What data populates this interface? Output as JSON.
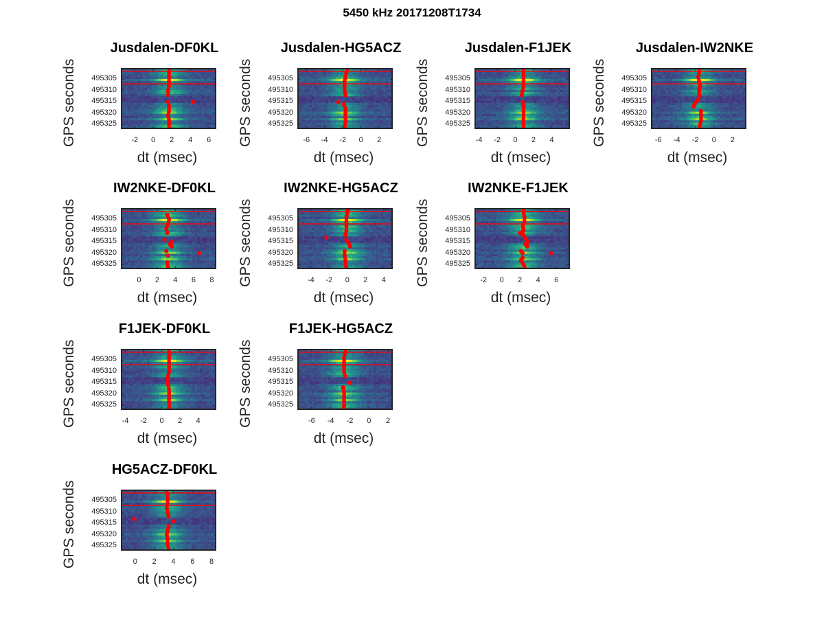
{
  "figure": {
    "title": "5450 kHz 20171208T1734",
    "background": "#ffffff"
  },
  "colors": {
    "marker": "#ff0000",
    "axis_frame": "#262626",
    "colormap": "viridis"
  },
  "chart_data": [
    {
      "type": "heatmap",
      "title": "Jusdalen-DF0KL",
      "xlabel": "dt (msec)",
      "ylabel": "GPS seconds",
      "xticks": [
        -2,
        0,
        2,
        4,
        6
      ],
      "xlim": [
        -3.5,
        6.8
      ],
      "yticks": [
        495305,
        495310,
        495315,
        495320,
        495325
      ],
      "ylim": [
        495300,
        495327
      ],
      "peak_dt": 1.7,
      "hlines": [
        495301.5,
        495307
      ],
      "markers": [
        [
          1.7,
          495300
        ],
        [
          1.7,
          495302
        ],
        [
          1.7,
          495304
        ],
        [
          1.7,
          495306
        ],
        [
          1.7,
          495308
        ],
        [
          1.6,
          495310
        ],
        [
          1.6,
          495312
        ],
        [
          4.3,
          495315
        ],
        [
          1.6,
          495315
        ],
        [
          1.7,
          495317
        ],
        [
          1.7,
          495319
        ],
        [
          1.6,
          495321
        ],
        [
          1.7,
          495323
        ],
        [
          1.7,
          495325
        ],
        [
          1.7,
          495327
        ]
      ],
      "pos": {
        "col": 0,
        "row": 0
      }
    },
    {
      "type": "heatmap",
      "title": "Jusdalen-HG5ACZ",
      "xlabel": "dt (msec)",
      "ylabel": "GPS seconds",
      "xticks": [
        -6,
        -4,
        -2,
        0,
        2
      ],
      "xlim": [
        -7,
        3.5
      ],
      "yticks": [
        495305,
        495310,
        495315,
        495320,
        495325
      ],
      "ylim": [
        495300,
        495327
      ],
      "peak_dt": -1.8,
      "hlines": [
        495301.5,
        495307
      ],
      "markers": [
        [
          -1.5,
          495300
        ],
        [
          -1.6,
          495302
        ],
        [
          -1.7,
          495304
        ],
        [
          -1.8,
          495306
        ],
        [
          -1.8,
          495308
        ],
        [
          -1.8,
          495310
        ],
        [
          -1.7,
          495312
        ],
        [
          -2.5,
          495315
        ],
        [
          -1.9,
          495316
        ],
        [
          -1.7,
          495318
        ],
        [
          -1.7,
          495320
        ],
        [
          -1.7,
          495322
        ],
        [
          -1.7,
          495324
        ],
        [
          -1.8,
          495326
        ],
        [
          -1.8,
          495327
        ]
      ],
      "pos": {
        "col": 1,
        "row": 0
      }
    },
    {
      "type": "heatmap",
      "title": "Jusdalen-F1JEK",
      "xlabel": "dt (msec)",
      "ylabel": "GPS seconds",
      "xticks": [
        -4,
        -2,
        0,
        2,
        4
      ],
      "xlim": [
        -4.5,
        6
      ],
      "yticks": [
        495305,
        495310,
        495315,
        495320,
        495325
      ],
      "ylim": [
        495300,
        495327
      ],
      "peak_dt": 0.9,
      "hlines": [
        495301.5,
        495307
      ],
      "markers": [
        [
          0.9,
          495300
        ],
        [
          0.9,
          495302
        ],
        [
          0.9,
          495304
        ],
        [
          0.9,
          495306
        ],
        [
          0.9,
          495308
        ],
        [
          0.8,
          495310
        ],
        [
          0.7,
          495312
        ],
        [
          0.8,
          495315
        ],
        [
          0.9,
          495317
        ],
        [
          0.9,
          495319
        ],
        [
          0.9,
          495321
        ],
        [
          0.9,
          495323
        ],
        [
          0.9,
          495325
        ],
        [
          0.9,
          495327
        ]
      ],
      "pos": {
        "col": 2,
        "row": 0
      }
    },
    {
      "type": "heatmap",
      "title": "Jusdalen-IW2NKE",
      "xlabel": "dt (msec)",
      "ylabel": "GPS seconds",
      "xticks": [
        -6,
        -4,
        -2,
        0,
        2
      ],
      "xlim": [
        -6.8,
        3.5
      ],
      "yticks": [
        495305,
        495310,
        495315,
        495320,
        495325
      ],
      "ylim": [
        495300,
        495327
      ],
      "peak_dt": -1.6,
      "hlines": [
        495301.5,
        495307
      ],
      "markers": [
        [
          -1.6,
          495300
        ],
        [
          -1.6,
          495302
        ],
        [
          -1.7,
          495304
        ],
        [
          -1.6,
          495306
        ],
        [
          -1.5,
          495308
        ],
        [
          -1.6,
          495310
        ],
        [
          -1.6,
          495312
        ],
        [
          -1.7,
          495314
        ],
        [
          -2.1,
          495316
        ],
        [
          -2.2,
          495317
        ],
        [
          -1.4,
          495319
        ],
        [
          -1.4,
          495321
        ],
        [
          -1.4,
          495323
        ],
        [
          -1.5,
          495325
        ],
        [
          -1.6,
          495327
        ]
      ],
      "pos": {
        "col": 3,
        "row": 0
      }
    },
    {
      "type": "heatmap",
      "title": "IW2NKE-DF0KL",
      "xlabel": "dt (msec)",
      "ylabel": "GPS seconds",
      "xticks": [
        0,
        2,
        4,
        6,
        8
      ],
      "xlim": [
        -2,
        8.5
      ],
      "yticks": [
        495305,
        495310,
        495315,
        495320,
        495325
      ],
      "ylim": [
        495300,
        495327
      ],
      "peak_dt": 3.2,
      "hlines": [
        495301.5,
        495307
      ],
      "markers": [
        [
          3.1,
          495299
        ],
        [
          8.0,
          495300
        ],
        [
          3.1,
          495303
        ],
        [
          3.3,
          495305
        ],
        [
          3.2,
          495307
        ],
        [
          3.0,
          495309
        ],
        [
          3.1,
          495311
        ],
        [
          2.8,
          495314
        ],
        [
          3.6,
          495315
        ],
        [
          3.4,
          495316
        ],
        [
          3.6,
          495317
        ],
        [
          3.0,
          495319
        ],
        [
          6.6,
          495320
        ],
        [
          3.2,
          495321
        ],
        [
          3.1,
          495324
        ],
        [
          3.2,
          495326
        ]
      ],
      "pos": {
        "col": 0,
        "row": 1
      }
    },
    {
      "type": "heatmap",
      "title": "IW2NKE-HG5ACZ",
      "xlabel": "dt (msec)",
      "ylabel": "GPS seconds",
      "xticks": [
        -4,
        -2,
        0,
        2,
        4
      ],
      "xlim": [
        -5.5,
        5
      ],
      "yticks": [
        495305,
        495310,
        495315,
        495320,
        495325
      ],
      "ylim": [
        495300,
        495327
      ],
      "peak_dt": 0.0,
      "hlines": [
        495301.5,
        495307
      ],
      "markers": [
        [
          0.1,
          495300
        ],
        [
          0.0,
          495302
        ],
        [
          -0.1,
          495304
        ],
        [
          -0.1,
          495306
        ],
        [
          -0.1,
          495308
        ],
        [
          -0.1,
          495310
        ],
        [
          -0.2,
          495312
        ],
        [
          -2.3,
          495313
        ],
        [
          -0.1,
          495314
        ],
        [
          0.2,
          495316
        ],
        [
          0.3,
          495317
        ],
        [
          -0.3,
          495319
        ],
        [
          -0.3,
          495321
        ],
        [
          -0.2,
          495323
        ],
        [
          -0.2,
          495325
        ],
        [
          -0.1,
          495327
        ]
      ],
      "pos": {
        "col": 1,
        "row": 1
      }
    },
    {
      "type": "heatmap",
      "title": "IW2NKE-F1JEK",
      "xlabel": "dt (msec)",
      "ylabel": "GPS seconds",
      "xticks": [
        -2,
        0,
        2,
        4,
        6
      ],
      "xlim": [
        -3,
        7.5
      ],
      "yticks": [
        495305,
        495310,
        495315,
        495320,
        495325
      ],
      "ylim": [
        495300,
        495327
      ],
      "peak_dt": 2.4,
      "hlines": [
        495301.5,
        495307
      ],
      "markers": [
        [
          2.4,
          495300
        ],
        [
          2.4,
          495302
        ],
        [
          2.5,
          495304
        ],
        [
          2.5,
          495306
        ],
        [
          2.3,
          495308
        ],
        [
          2.4,
          495310
        ],
        [
          2.0,
          495311
        ],
        [
          2.4,
          495312
        ],
        [
          2.7,
          495314
        ],
        [
          2.9,
          495315
        ],
        [
          2.6,
          495316
        ],
        [
          2.8,
          495317
        ],
        [
          2.1,
          495319
        ],
        [
          2.3,
          495320
        ],
        [
          5.4,
          495320
        ],
        [
          2.3,
          495322
        ],
        [
          2.1,
          495323
        ],
        [
          2.4,
          495325
        ],
        [
          2.5,
          495326
        ]
      ],
      "pos": {
        "col": 2,
        "row": 1
      }
    },
    {
      "type": "heatmap",
      "title": "F1JEK-DF0KL",
      "xlabel": "dt (msec)",
      "ylabel": "GPS seconds",
      "xticks": [
        -4,
        -2,
        0,
        2,
        4
      ],
      "xlim": [
        -4.5,
        6
      ],
      "yticks": [
        495305,
        495310,
        495315,
        495320,
        495325
      ],
      "ylim": [
        495300,
        495327
      ],
      "peak_dt": 0.8,
      "hlines": [
        495301.5,
        495307
      ],
      "markers": [
        [
          0.8,
          495300
        ],
        [
          0.8,
          495302
        ],
        [
          0.8,
          495304
        ],
        [
          0.8,
          495306
        ],
        [
          0.8,
          495308
        ],
        [
          0.8,
          495310
        ],
        [
          0.7,
          495312
        ],
        [
          0.6,
          495314
        ],
        [
          0.7,
          495316
        ],
        [
          0.8,
          495318
        ],
        [
          0.8,
          495320
        ],
        [
          0.8,
          495322
        ],
        [
          0.8,
          495324
        ],
        [
          0.8,
          495326
        ],
        [
          0.8,
          495327
        ]
      ],
      "pos": {
        "col": 0,
        "row": 2
      }
    },
    {
      "type": "heatmap",
      "title": "F1JEK-HG5ACZ",
      "xlabel": "dt (msec)",
      "ylabel": "GPS seconds",
      "xticks": [
        -6,
        -4,
        -2,
        0,
        2
      ],
      "xlim": [
        -7.5,
        2.5
      ],
      "yticks": [
        495305,
        495310,
        495315,
        495320,
        495325
      ],
      "ylim": [
        495300,
        495327
      ],
      "peak_dt": -2.6,
      "hlines": [
        495301.5,
        495307
      ],
      "markers": [
        [
          -2.4,
          495300
        ],
        [
          -2.5,
          495302
        ],
        [
          -2.6,
          495304
        ],
        [
          -2.6,
          495306
        ],
        [
          -2.6,
          495308
        ],
        [
          -2.6,
          495310
        ],
        [
          -2.5,
          495312
        ],
        [
          -2.0,
          495315
        ],
        [
          -2.7,
          495317
        ],
        [
          -2.6,
          495319
        ],
        [
          -2.6,
          495321
        ],
        [
          -2.6,
          495323
        ],
        [
          -2.6,
          495325
        ],
        [
          -2.7,
          495327
        ]
      ],
      "pos": {
        "col": 1,
        "row": 2
      }
    },
    {
      "type": "heatmap",
      "title": "HG5ACZ-DF0KL",
      "xlabel": "dt (msec)",
      "ylabel": "GPS seconds",
      "xticks": [
        0,
        2,
        4,
        6,
        8
      ],
      "xlim": [
        -1.5,
        8.5
      ],
      "yticks": [
        495305,
        495310,
        495315,
        495320,
        495325
      ],
      "ylim": [
        495300,
        495327
      ],
      "peak_dt": 3.4,
      "hlines": [
        495301.5,
        495307
      ],
      "markers": [
        [
          3.2,
          495300
        ],
        [
          3.4,
          495302
        ],
        [
          3.4,
          495304
        ],
        [
          3.4,
          495306
        ],
        [
          3.3,
          495308
        ],
        [
          3.4,
          495310
        ],
        [
          3.5,
          495312
        ],
        [
          -0.1,
          495313
        ],
        [
          4.0,
          495314
        ],
        [
          3.5,
          495316
        ],
        [
          3.4,
          495318
        ],
        [
          3.3,
          495320
        ],
        [
          3.4,
          495322
        ],
        [
          3.4,
          495324
        ],
        [
          3.5,
          495326
        ]
      ],
      "pos": {
        "col": 0,
        "row": 3
      }
    }
  ]
}
